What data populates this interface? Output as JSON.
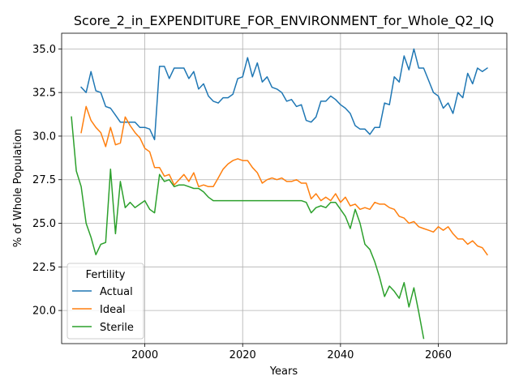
{
  "chart_data": {
    "type": "line",
    "title": "Score_2_in_EXPENDITURE_FOR_ENVIRONMENT_for_Whole_Q2_IQ",
    "xlabel": "Years",
    "ylabel": "% of Whole Population",
    "xlim": [
      1983,
      2074
    ],
    "ylim": [
      18.1,
      35.9
    ],
    "xticks": [
      2000,
      2020,
      2040,
      2060
    ],
    "yticks": [
      20.0,
      22.5,
      25.0,
      27.5,
      30.0,
      32.5,
      35.0
    ],
    "xtick_labels": [
      "2000",
      "2020",
      "2040",
      "2060"
    ],
    "ytick_labels": [
      "20.0",
      "22.5",
      "25.0",
      "27.5",
      "30.0",
      "32.5",
      "35.0"
    ],
    "grid": true,
    "legend": {
      "title": "Fertility",
      "position": "lower-left"
    },
    "series": [
      {
        "name": "Actual",
        "color": "#1f77b4",
        "x": [
          1987,
          1988,
          1989,
          1990,
          1991,
          1992,
          1993,
          1994,
          1995,
          1996,
          1997,
          1998,
          1999,
          2000,
          2001,
          2002,
          2003,
          2004,
          2005,
          2006,
          2007,
          2008,
          2009,
          2010,
          2011,
          2012,
          2013,
          2014,
          2015,
          2016,
          2017,
          2018,
          2019,
          2020,
          2021,
          2022,
          2023,
          2024,
          2025,
          2026,
          2027,
          2028,
          2029,
          2030,
          2031,
          2032,
          2033,
          2034,
          2035,
          2036,
          2037,
          2038,
          2039,
          2040,
          2041,
          2042,
          2043,
          2044,
          2045,
          2046,
          2047,
          2048,
          2049,
          2050,
          2051,
          2052,
          2053,
          2054,
          2055,
          2056,
          2057,
          2058,
          2059,
          2060,
          2061,
          2062,
          2063,
          2064,
          2065,
          2066,
          2067,
          2068,
          2069,
          2070
        ],
        "y": [
          32.8,
          32.5,
          33.7,
          32.6,
          32.5,
          31.7,
          31.6,
          31.2,
          30.8,
          30.8,
          30.8,
          30.8,
          30.5,
          30.5,
          30.4,
          29.8,
          34.0,
          34.0,
          33.3,
          33.9,
          33.9,
          33.9,
          33.3,
          33.7,
          32.7,
          33.0,
          32.3,
          32.0,
          31.9,
          32.2,
          32.2,
          32.4,
          33.3,
          33.4,
          34.5,
          33.4,
          34.2,
          33.1,
          33.4,
          32.8,
          32.7,
          32.5,
          32.0,
          32.1,
          31.7,
          31.8,
          30.9,
          30.8,
          31.1,
          32.0,
          32.0,
          32.3,
          32.1,
          31.8,
          31.6,
          31.3,
          30.6,
          30.4,
          30.4,
          30.1,
          30.5,
          30.5,
          31.9,
          31.8,
          33.4,
          33.1,
          34.6,
          33.8,
          35.0,
          33.9,
          33.9,
          33.2,
          32.5,
          32.3,
          31.6,
          31.9,
          31.3,
          32.5,
          32.2,
          33.6,
          33.0,
          33.9,
          33.7,
          33.9
        ]
      },
      {
        "name": "Ideal",
        "color": "#ff7f0e",
        "x": [
          1987,
          1988,
          1989,
          1990,
          1991,
          1992,
          1993,
          1994,
          1995,
          1996,
          1997,
          1998,
          1999,
          2000,
          2001,
          2002,
          2003,
          2004,
          2005,
          2006,
          2007,
          2008,
          2009,
          2010,
          2011,
          2012,
          2013,
          2014,
          2015,
          2016,
          2017,
          2018,
          2019,
          2020,
          2021,
          2022,
          2023,
          2024,
          2025,
          2026,
          2027,
          2028,
          2029,
          2030,
          2031,
          2032,
          2033,
          2034,
          2035,
          2036,
          2037,
          2038,
          2039,
          2040,
          2041,
          2042,
          2043,
          2044,
          2045,
          2046,
          2047,
          2048,
          2049,
          2050,
          2051,
          2052,
          2053,
          2054,
          2055,
          2056,
          2057,
          2058,
          2059,
          2060,
          2061,
          2062,
          2063,
          2064,
          2065,
          2066,
          2067,
          2068,
          2069,
          2070
        ],
        "y": [
          30.2,
          31.7,
          30.9,
          30.5,
          30.2,
          29.4,
          30.5,
          29.5,
          29.6,
          31.1,
          30.6,
          30.2,
          29.9,
          29.3,
          29.1,
          28.2,
          28.2,
          27.7,
          27.8,
          27.2,
          27.5,
          27.8,
          27.4,
          27.9,
          27.1,
          27.2,
          27.1,
          27.1,
          27.6,
          28.1,
          28.4,
          28.6,
          28.7,
          28.6,
          28.6,
          28.2,
          27.9,
          27.3,
          27.5,
          27.6,
          27.5,
          27.6,
          27.4,
          27.4,
          27.5,
          27.3,
          27.3,
          26.4,
          26.7,
          26.3,
          26.5,
          26.3,
          26.7,
          26.2,
          26.5,
          26.0,
          26.1,
          25.8,
          25.9,
          25.8,
          26.2,
          26.1,
          26.1,
          25.9,
          25.8,
          25.4,
          25.3,
          25.0,
          25.1,
          24.8,
          24.7,
          24.6,
          24.5,
          24.8,
          24.6,
          24.8,
          24.4,
          24.1,
          24.1,
          23.8,
          24.0,
          23.7,
          23.6,
          23.2
        ]
      },
      {
        "name": "Sterile",
        "color": "#2ca02c",
        "x": [
          1985,
          1986,
          1987,
          1988,
          1989,
          1990,
          1991,
          1992,
          1993,
          1994,
          1995,
          1996,
          1997,
          1998,
          1999,
          2000,
          2001,
          2002,
          2003,
          2004,
          2005,
          2006,
          2007,
          2008,
          2009,
          2010,
          2011,
          2012,
          2013,
          2014,
          2015,
          2016,
          2017,
          2018,
          2019,
          2020,
          2021,
          2022,
          2023,
          2024,
          2025,
          2026,
          2027,
          2028,
          2029,
          2030,
          2031,
          2032,
          2033,
          2034,
          2035,
          2036,
          2037,
          2038,
          2039,
          2040,
          2041,
          2042,
          2043,
          2044,
          2045,
          2046,
          2047,
          2048,
          2049,
          2050,
          2051,
          2052,
          2053,
          2054,
          2055,
          2056,
          2057
        ],
        "y": [
          31.1,
          28.0,
          27.1,
          25.0,
          24.2,
          23.2,
          23.8,
          23.9,
          28.1,
          24.4,
          27.4,
          25.9,
          26.2,
          25.9,
          26.1,
          26.3,
          25.8,
          25.6,
          27.8,
          27.4,
          27.5,
          27.1,
          27.2,
          27.2,
          27.1,
          27.0,
          27.0,
          26.8,
          26.5,
          26.3,
          26.3,
          26.3,
          26.3,
          26.3,
          26.3,
          26.3,
          26.3,
          26.3,
          26.3,
          26.3,
          26.3,
          26.3,
          26.3,
          26.3,
          26.3,
          26.3,
          26.3,
          26.3,
          26.2,
          25.6,
          25.9,
          26.0,
          25.9,
          26.2,
          26.2,
          25.8,
          25.4,
          24.7,
          25.8,
          25.0,
          23.8,
          23.5,
          22.8,
          21.9,
          20.8,
          21.4,
          21.1,
          20.7,
          21.6,
          20.2,
          21.3,
          19.9,
          18.4
        ]
      }
    ]
  }
}
